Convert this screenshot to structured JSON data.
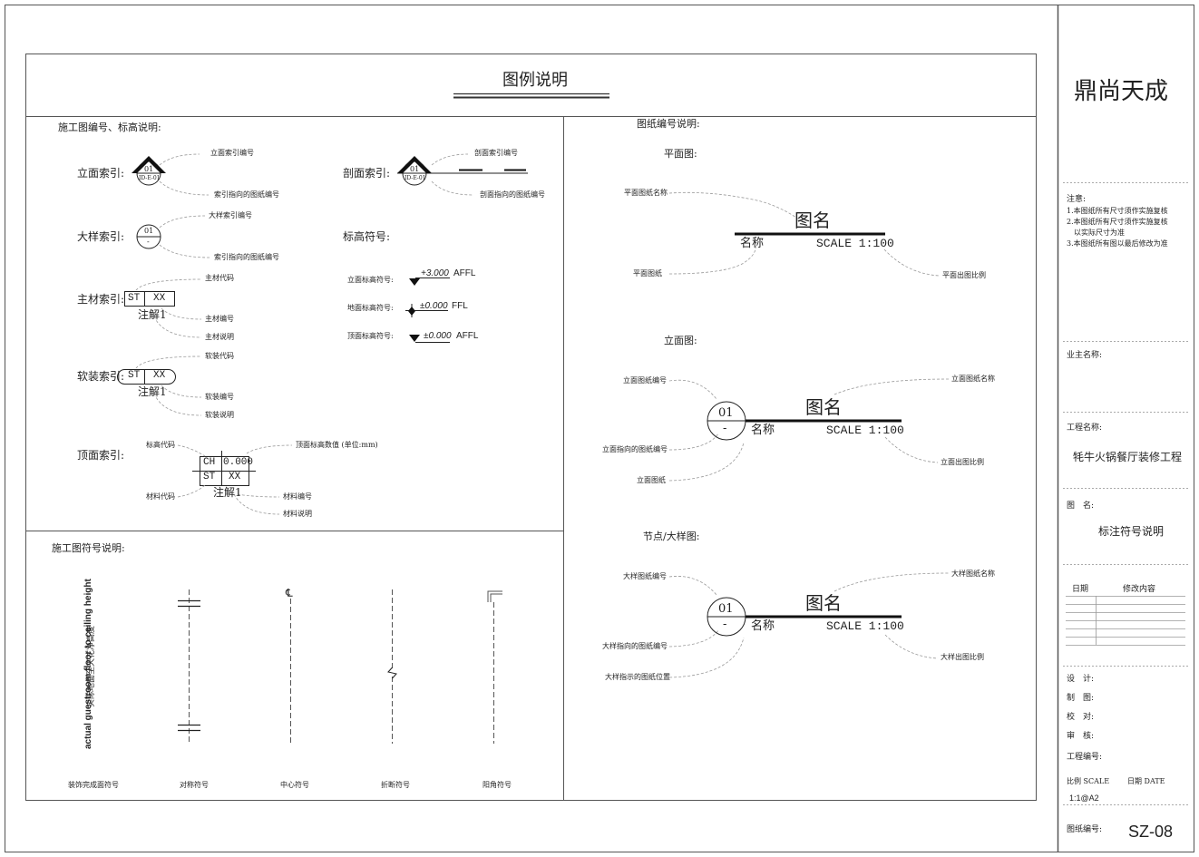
{
  "title": "图例说明",
  "left": {
    "section_title": "施工图编号、标高说明:",
    "elev_index": {
      "label": "立面索引:",
      "num": "01",
      "sheet": "ID-E-01",
      "note_top": "立面索引编号",
      "note_bottom": "索引指向的图纸编号"
    },
    "section_index": {
      "label": "剖面索引:",
      "num": "01",
      "sheet": "ID-E-01",
      "note_top": "剖面索引编号",
      "note_bottom": "剖面指向的图纸编号"
    },
    "detail_index": {
      "label": "大样索引:",
      "num": "01",
      "sheet": "-",
      "note_top": "大样索引编号",
      "note_bottom": "索引指向的图纸编号"
    },
    "level_symbol": {
      "label": "标高符号:"
    },
    "wall_level": {
      "label": "立面标高符号:",
      "value": "+3.000",
      "suffix": "AFFL"
    },
    "floor_level": {
      "label": "地面标高符号:",
      "value": "±0.000",
      "suffix": "FFL"
    },
    "ceil_level": {
      "label": "顶面标高符号:",
      "value": "±0.000",
      "suffix": "AFFL"
    },
    "material_index": {
      "label": "主材索引:",
      "code": "ST",
      "num": "XX",
      "note": "注解1",
      "n1": "主材代码",
      "n2": "主材编号",
      "n3": "主材说明"
    },
    "soft_index": {
      "label": "软装索引:",
      "code": "ST",
      "num": "XX",
      "note": "注解1",
      "n1": "软装代码",
      "n2": "软装编号",
      "n3": "软装说明"
    },
    "ceiling_index": {
      "label": "顶面索引:",
      "ch": "CH",
      "height": "0.000",
      "code": "ST",
      "num": "XX",
      "note": "注解1",
      "n_level_code": "标高代码",
      "n_value": "顶面标高数值 (单位:mm)",
      "n_mat_code": "材料代码",
      "n_mat_num": "材料编号",
      "n_mat_desc": "材料说明"
    }
  },
  "symbols": {
    "section_title": "施工图符号说明:",
    "finish_cn": "实际地面至天花净高度",
    "finish_en": "actual guestroom floor to ceiling height",
    "finish": "装饰完成面符号",
    "symmetry": "对称符号",
    "center": "中心符号",
    "center_mark": "℄",
    "break": "折断符号",
    "corner": "阳角符号"
  },
  "right": {
    "section_title": "图纸编号说明:",
    "plan": {
      "label": "平面图:",
      "name_note": "平面图纸名称",
      "title": "图名",
      "sub": "名称",
      "scale": "SCALE 1:100",
      "sheet_note": "平面图纸",
      "scale_note": "平面出图比例"
    },
    "elev": {
      "label": "立面图:",
      "num_note": "立面图纸编号",
      "title_note": "立面图纸名称",
      "num": "01",
      "sheet": "-",
      "title": "图名",
      "sub": "名称",
      "scale": "SCALE 1:100",
      "target_note": "立面指向的图纸编号",
      "sheet_note": "立面图纸",
      "scale_note": "立面出图比例"
    },
    "detail": {
      "label": "节点/大样图:",
      "num_note": "大样图纸编号",
      "title_note": "大样图纸名称",
      "num": "01",
      "sheet": "-",
      "title": "图名",
      "sub": "名称",
      "scale": "SCALE 1:100",
      "target_note": "大样指向的图纸编号",
      "pos_note": "大样指示的图纸位置",
      "scale_note": "大样出图比例"
    }
  },
  "titleblock": {
    "company": "鼎尚天成",
    "notes_title": "注意:",
    "notes": [
      "1.本图纸所有尺寸须作实施复核",
      "2.本图纸所有尺寸须作实施复核",
      "以实际尺寸为准",
      "3.本图纸所有图以最后修改为准"
    ],
    "owner_label": "业主名称:",
    "project_label": "工程名称:",
    "project_name": "牦牛火锅餐厅装修工程",
    "drawing_label": "图　名:",
    "drawing_name": "标注符号说明",
    "rev_date": "日期",
    "rev_content": "修改内容",
    "design": "设　计:",
    "draw": "制　图:",
    "check": "校　对:",
    "review": "审　核:",
    "project_no": "工程编号:",
    "scale_label": "比例 SCALE",
    "date_label": "日期 DATE",
    "scale_value": "1:1@A2",
    "sheet_no_label": "图纸编号:",
    "sheet_no": "SZ-08"
  }
}
